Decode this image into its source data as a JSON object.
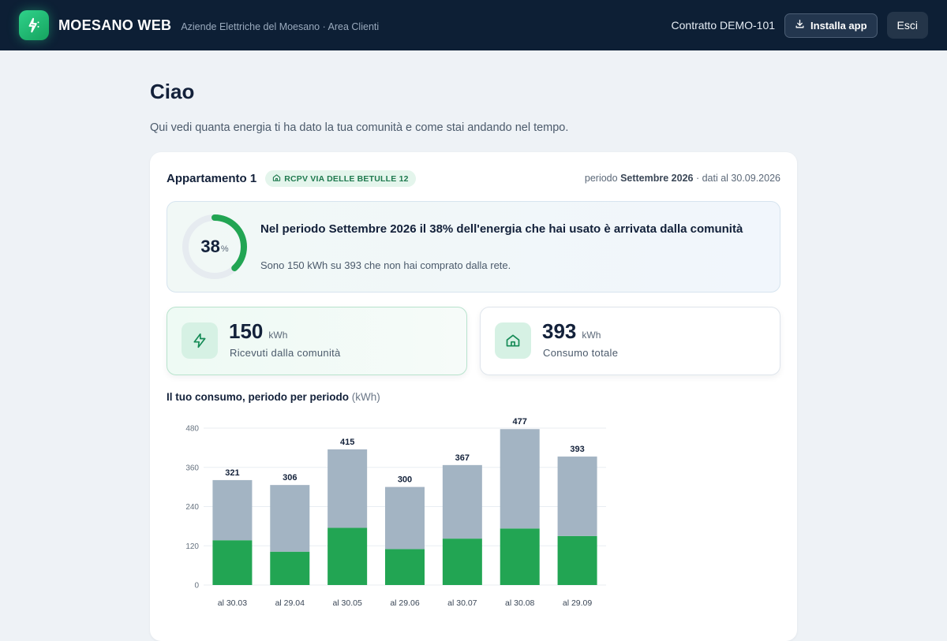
{
  "app": {
    "brand": "MOESANO WEB",
    "subtitle": "Aziende Elettriche del Moesano · Area Clienti",
    "contract": "Contratto DEMO-101",
    "install_label": "Installa app",
    "exit_label": "Esci"
  },
  "page": {
    "greeting": "Ciao",
    "intro": "Qui vedi quanta energia ti ha dato la tua comunità e come stai andando nel tempo."
  },
  "card": {
    "apartment": "Appartamento 1",
    "community_badge": "RCPV VIA DELLE BETULLE 12",
    "period_prefix": "periodo",
    "period_name": "Settembre 2026",
    "period_suffix": "· dati al 30.09.2026"
  },
  "share": {
    "percent": 38,
    "percent_text": "38",
    "percent_sign": "%",
    "title": "Nel periodo Settembre 2026 il 38% dell'energia che hai usato è arrivata dalla comunità",
    "subtitle": "Sono 150 kWh su 393 che non hai comprato dalla rete."
  },
  "kpis": [
    {
      "value": "150",
      "unit": "kWh",
      "label": "Ricevuti dalla comunità",
      "icon": "lightning-icon"
    },
    {
      "value": "393",
      "unit": "kWh",
      "label": "Consumo totale",
      "icon": "home-icon"
    }
  ],
  "colors": {
    "community": "#22a553",
    "grid": "#a3b4c3",
    "accent": "#18a360"
  },
  "chart_title": "Il tuo consumo, periodo per periodo",
  "chart_unit": "(kWh)",
  "chart_data": {
    "type": "bar",
    "stacked": true,
    "categories": [
      "al 30.03",
      "al 29.04",
      "al 30.05",
      "al 29.06",
      "al 30.07",
      "al 30.08",
      "al 29.09"
    ],
    "series": [
      {
        "values": [
          137,
          102,
          175,
          110,
          142,
          173,
          150
        ]
      },
      {
        "values": [
          184,
          204,
          240,
          190,
          225,
          304,
          243
        ]
      }
    ],
    "totals": [
      321,
      306,
      415,
      300,
      367,
      477,
      393
    ],
    "yticks": [
      0,
      120,
      240,
      360,
      480
    ],
    "ylim": [
      0,
      480
    ],
    "grid": true
  }
}
